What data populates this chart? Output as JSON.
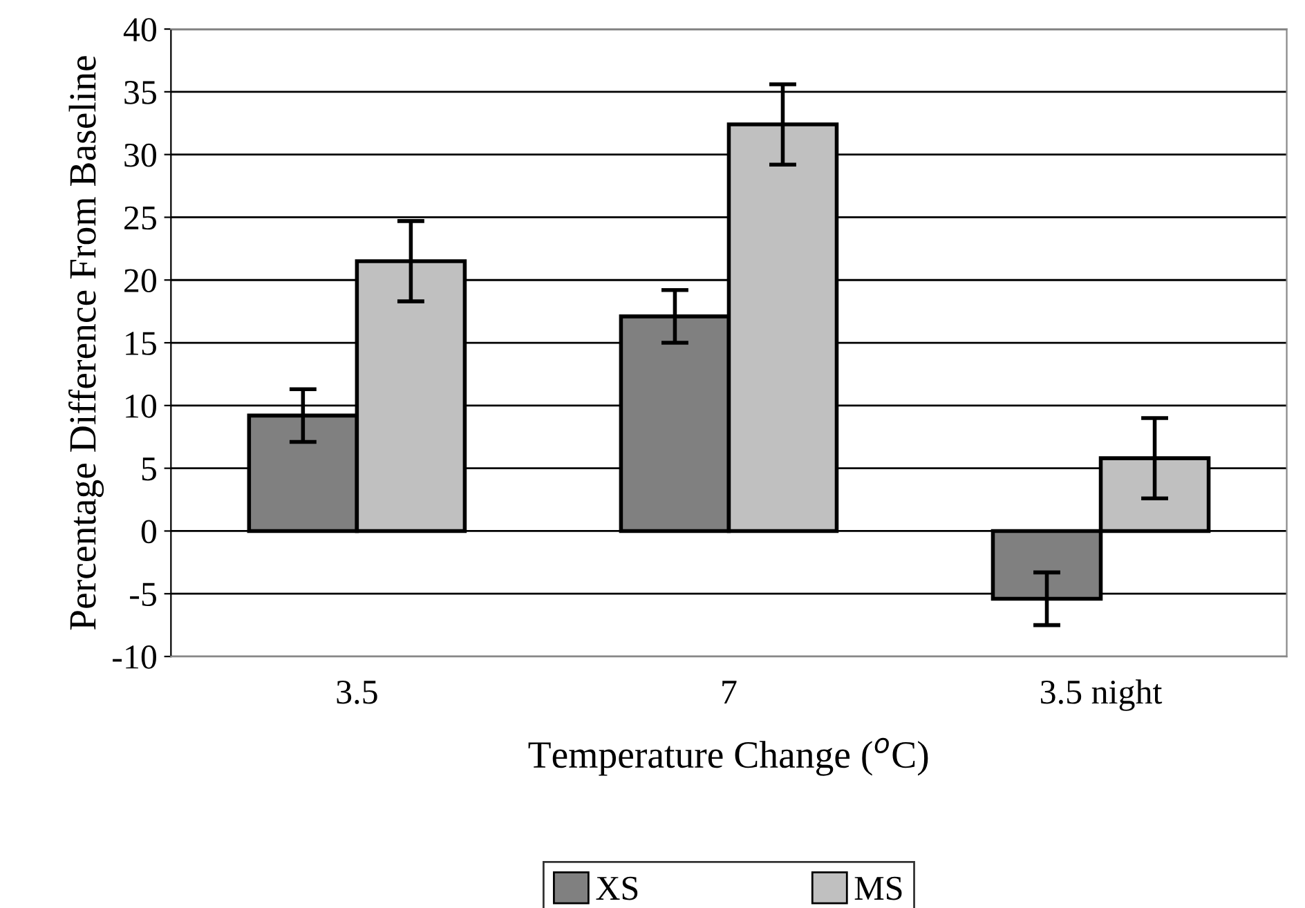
{
  "chart_data": {
    "type": "bar",
    "categories": [
      "3.5",
      "7",
      "3.5 night"
    ],
    "xlabel": "Temperature Change ($^{o}$C)",
    "ylabel": "Percentage Difference From Baseline",
    "series": [
      {
        "name": "XS",
        "color": "#808080",
        "values": [
          9.2,
          17.1,
          -5.4
        ],
        "errors": [
          2.1,
          2.1,
          2.1
        ]
      },
      {
        "name": "MS",
        "color": "#c0c0c0",
        "values": [
          21.5,
          32.4,
          5.8
        ],
        "errors": [
          3.2,
          3.2,
          3.2
        ]
      }
    ],
    "ylim": [
      -10,
      40
    ],
    "yticks": [
      -10,
      -5,
      0,
      5,
      10,
      15,
      20,
      25,
      30,
      35,
      40
    ],
    "grid": "y",
    "legend": "bottom"
  }
}
